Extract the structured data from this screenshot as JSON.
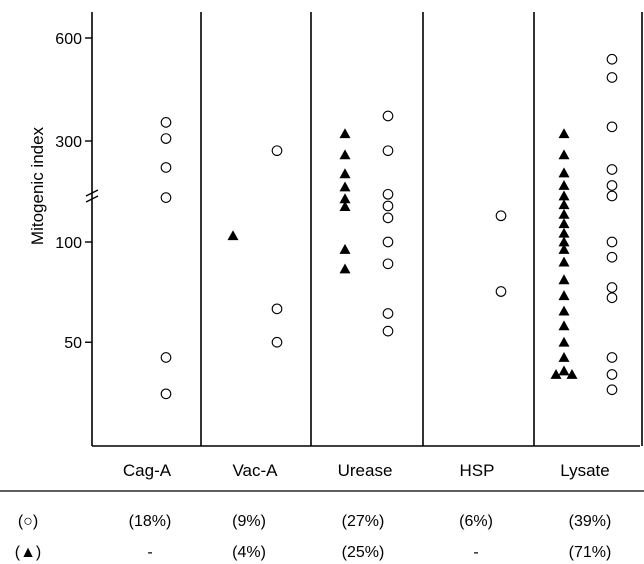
{
  "chart_data": {
    "type": "scatter",
    "title": "",
    "ylabel": "Mitogenic index",
    "xlabel": "",
    "yticks": [
      "600",
      "300",
      "100",
      "50"
    ],
    "categories": [
      "Cag-A",
      "Vac-A",
      "Urease",
      "HSP",
      "Lysate"
    ],
    "series": [
      {
        "marker": "circle"
      },
      {
        "marker": "triangle"
      }
    ],
    "points": {
      "Cag-A": {
        "circle": [
          340,
          305,
          225,
          162,
          45,
          35
        ],
        "triangle": []
      },
      "Vac-A": {
        "circle": [
          270,
          63,
          50
        ],
        "triangle": [
          107
        ]
      },
      "Urease": {
        "circle": [
          355,
          270,
          168,
          148,
          130,
          100,
          86,
          61,
          54
        ],
        "triangle": [
          315,
          258,
          210,
          182,
          160,
          147,
          95,
          83
        ]
      },
      "HSP": {
        "circle": [
          133,
          71
        ],
        "triangle": []
      },
      "Lysate": {
        "circle": [
          520,
          460,
          330,
          220,
          185,
          165,
          100,
          90,
          73,
          68,
          45,
          40,
          36
        ],
        "triangle": [
          315,
          258,
          212,
          185,
          165,
          150,
          135,
          122,
          110,
          100,
          95,
          87,
          77,
          69,
          62,
          56,
          50,
          45,
          41,
          40,
          40
        ]
      }
    },
    "footnote_rows": [
      {
        "marker_label": "(○)",
        "values": [
          "(18%)",
          "(9%)",
          "(27%)",
          "(6%)",
          "(39%)"
        ]
      },
      {
        "marker_label": "(▲)",
        "values": [
          "-",
          "(4%)",
          "(25%)",
          "-",
          "(71%)"
        ]
      }
    ]
  }
}
